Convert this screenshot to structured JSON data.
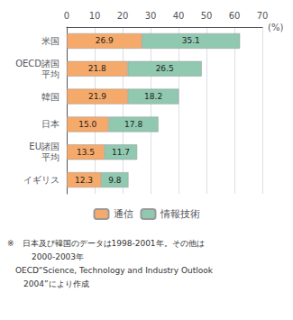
{
  "chart_data": {
    "type": "bar",
    "orientation": "horizontal",
    "stacked": true,
    "categories": [
      "米国",
      "OECD諸国\n平均",
      "韓国",
      "日本",
      "EU諸国\n平均",
      "イギリス"
    ],
    "series": [
      {
        "name": "通信",
        "color": "#F5A96A",
        "values": [
          26.9,
          21.8,
          21.9,
          15.0,
          13.5,
          12.3
        ],
        "value_labels": [
          "26.9",
          "21.8",
          "21.9",
          "15.0",
          "13.5",
          "12.3"
        ]
      },
      {
        "name": "情報技術",
        "color": "#90C8B0",
        "values": [
          35.1,
          26.5,
          18.2,
          17.8,
          11.7,
          9.8
        ],
        "value_labels": [
          "35.1",
          "26.5",
          "18.2",
          "17.8",
          "11.7",
          "9.8"
        ]
      }
    ],
    "xlabel": "(%)",
    "xlim": [
      0,
      70
    ],
    "xticks": [
      0,
      10,
      20,
      30,
      40,
      50,
      60,
      70
    ],
    "grid": true,
    "data_labels": true,
    "legend": "bottom",
    "annotations": [
      "※　日本及び韓国のデータは1998-2001年。その他は",
      "　　　2000-2003年",
      "　OECD“Science, Technology and Industry Outlook",
      "　　2004”により作成"
    ]
  }
}
